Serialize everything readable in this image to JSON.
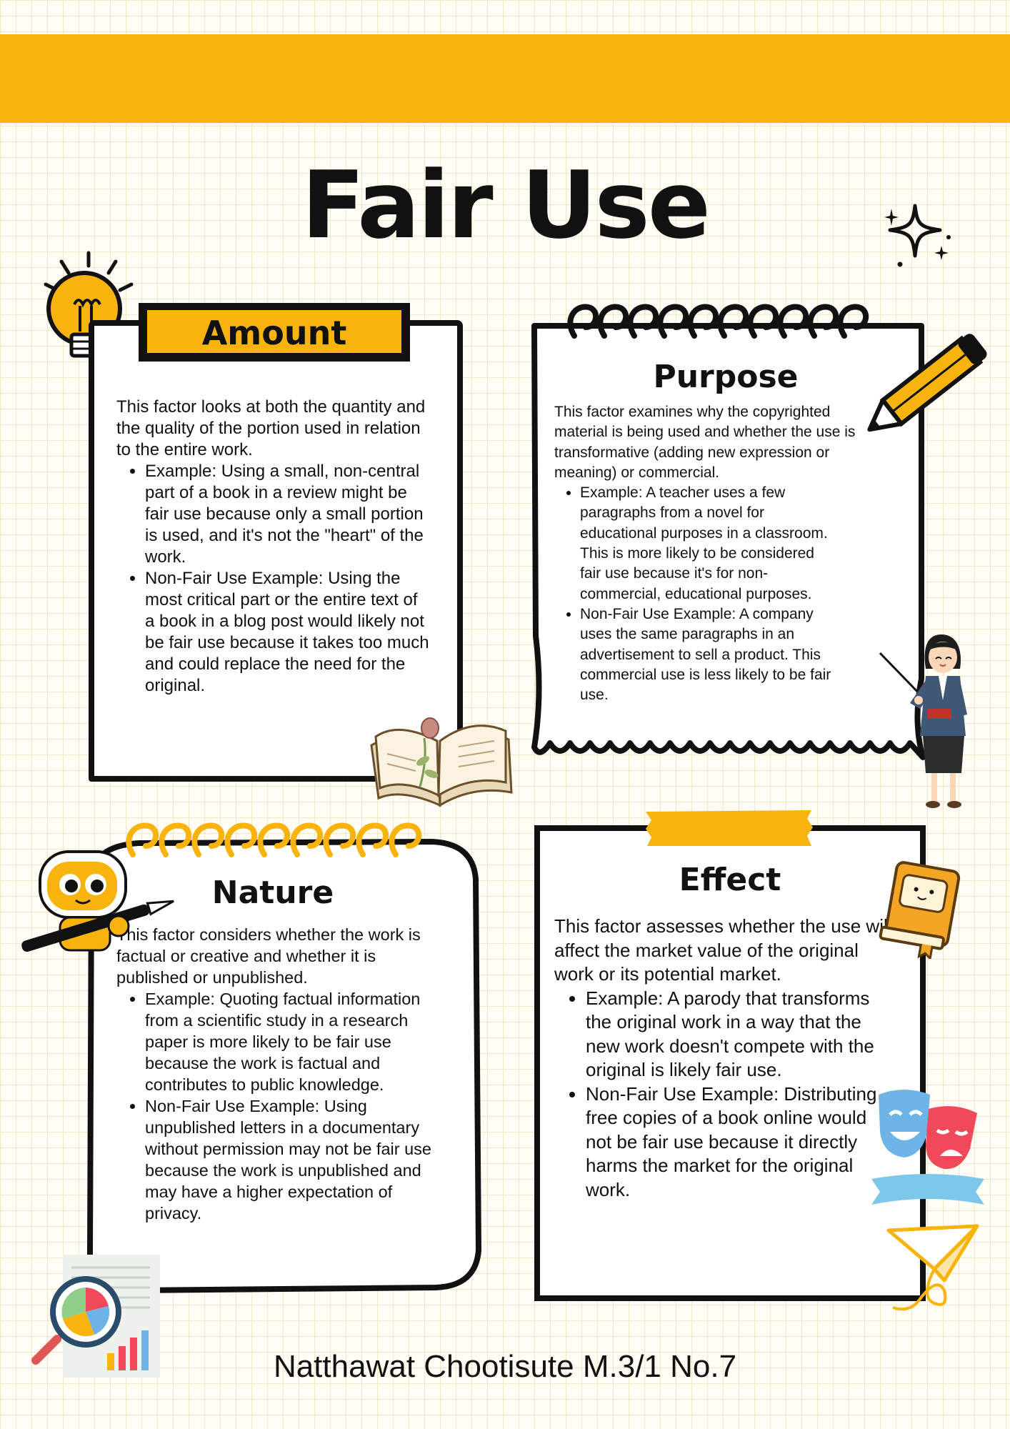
{
  "page": {
    "title": "Fair Use",
    "footer": "Natthawat Chootisute M.3/1 No.7"
  },
  "colors": {
    "accent": "#f8b40c",
    "ink": "#111111",
    "paper": "#fffdf5",
    "card": "#ffffff"
  },
  "sections": {
    "amount": {
      "title": "Amount",
      "intro": "This factor looks at both the quantity and the quality of the portion used in relation to the entire work.",
      "bullets": [
        "Example: Using a small, non-central part of a book in a review might be fair use because only a small portion is used, and it's not the \"heart\" of the work.",
        "Non-Fair Use Example: Using the most critical part or the entire text of a book in a blog post would likely not be fair use because it takes too much and could replace the need for the original."
      ]
    },
    "purpose": {
      "title": "Purpose",
      "intro": "This factor examines why the copyrighted material is being used and whether the use is transformative (adding new expression or meaning) or commercial.",
      "bullets": [
        "Example: A teacher uses a few paragraphs from a novel for educational purposes in a classroom. This is more likely to be considered fair use because it's for non-commercial, educational purposes.",
        "Non-Fair Use Example: A company uses the same paragraphs in an advertisement to sell a product. This commercial use is less likely to be fair use."
      ]
    },
    "nature": {
      "title": "Nature",
      "intro": "This factor considers whether the work is factual or creative and whether it is published or unpublished.",
      "bullets": [
        "Example: Quoting factual information from a scientific study in a research paper is more likely to be fair use because the work is factual and contributes to public knowledge.",
        "Non-Fair Use Example: Using unpublished letters in a documentary without permission may not be fair use because the work is unpublished and may have a higher expectation of privacy."
      ]
    },
    "effect": {
      "title": "Effect",
      "intro": "This factor assesses whether the use will affect the market value of the original work or its potential market.",
      "bullets": [
        "Example: A parody that transforms the original work in a way that the new work doesn't compete with the original is likely fair use.",
        "Non-Fair Use Example: Distributing free copies of a book online would not be fair use because it directly harms the market for the original work."
      ]
    }
  },
  "icons": [
    "lightbulb-icon",
    "sparkle-icon",
    "pencil-icon",
    "open-book-rose-icon",
    "teacher-illustration",
    "robot-pen-icon",
    "cute-book-icon",
    "theater-masks-icon",
    "paper-plane-icon",
    "magnifier-chart-icon"
  ]
}
